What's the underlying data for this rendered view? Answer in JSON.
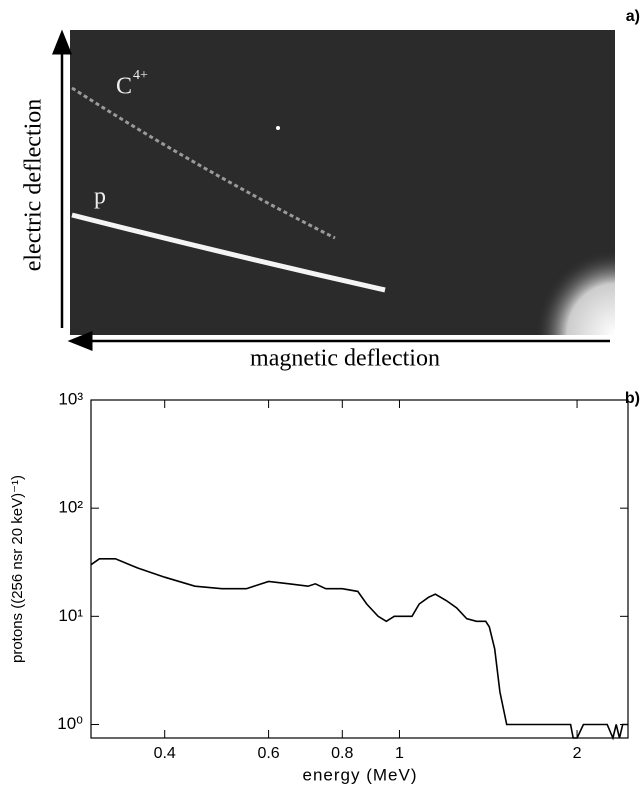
{
  "panel_a": {
    "tag": "a)",
    "ion_label": "C",
    "ion_charge": "4+",
    "proton_label": "p",
    "y_axis_label": "electric deflection",
    "x_axis_label": "magnetic deflection"
  },
  "chart_data": {
    "type": "line",
    "tag": "b)",
    "x_label": "energy (MeV)",
    "y_label": "protons ((256 nsr 20 keV)⁻¹)",
    "color": "#000000",
    "log_x": true,
    "log_y": true,
    "xlim": [
      0.3,
      2.44
    ],
    "xticks": [
      0.4,
      0.6,
      0.8,
      1,
      2
    ],
    "ylim": [
      0.75,
      1000
    ],
    "yticks": [
      {
        "value": 1,
        "label": "10⁰"
      },
      {
        "value": 10,
        "label": "10¹"
      },
      {
        "value": 100,
        "label": "10²"
      },
      {
        "value": 1000,
        "label": "10³"
      }
    ],
    "x": [
      0.3,
      0.31,
      0.33,
      0.36,
      0.4,
      0.45,
      0.5,
      0.55,
      0.6,
      0.65,
      0.7,
      0.72,
      0.75,
      0.8,
      0.85,
      0.88,
      0.92,
      0.95,
      0.98,
      1.0,
      1.05,
      1.08,
      1.12,
      1.15,
      1.2,
      1.25,
      1.3,
      1.35,
      1.4,
      1.42,
      1.45,
      1.48,
      1.52,
      1.6,
      1.9,
      1.95,
      1.97,
      2.0,
      2.05,
      2.2,
      2.25,
      2.3,
      2.33,
      2.36,
      2.39,
      2.44
    ],
    "values": [
      30,
      34,
      34,
      28,
      23,
      19,
      18,
      18,
      21,
      20,
      19,
      20,
      18,
      18,
      17,
      13,
      10,
      9,
      10,
      10,
      10,
      13,
      15,
      16,
      14,
      12,
      9.5,
      9,
      9,
      8,
      5,
      2,
      1,
      1,
      1,
      1,
      0.75,
      0.75,
      1,
      1,
      1,
      0.75,
      1,
      0.75,
      1,
      1
    ]
  }
}
